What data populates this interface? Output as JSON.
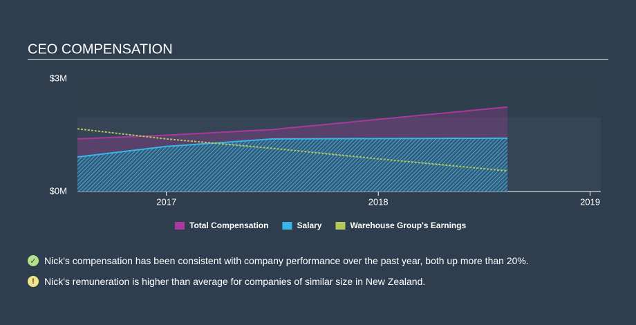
{
  "chart_data": {
    "type": "area-line",
    "title": "CEO COMPENSATION",
    "x": [
      2016.58,
      2017,
      2017.5,
      2018,
      2018.61
    ],
    "xlim": [
      2016.58,
      2019.05
    ],
    "xticks": [
      2017,
      2018,
      2019
    ],
    "ylim": [
      0,
      3
    ],
    "yticks": [
      {
        "value": 0,
        "label": "$0M"
      },
      {
        "value": 3,
        "label": "$3M"
      }
    ],
    "series": [
      {
        "name": "Total Compensation",
        "color": "#a9399c",
        "values": [
          1.4,
          1.5,
          1.65,
          1.92,
          2.25
        ]
      },
      {
        "name": "Salary",
        "color": "#3bb5e8",
        "values": [
          0.92,
          1.2,
          1.4,
          1.41,
          1.42
        ]
      },
      {
        "name": "Warehouse Group's Earnings",
        "color": "#b4c85a",
        "values": [
          1.67,
          1.4,
          1.15,
          0.87,
          0.55
        ]
      }
    ]
  },
  "notes": [
    "Nick's compensation has been consistent with company performance over the past year, both up more than 20%.",
    "Nick's remuneration is higher than average for companies of similar size in New Zealand."
  ]
}
